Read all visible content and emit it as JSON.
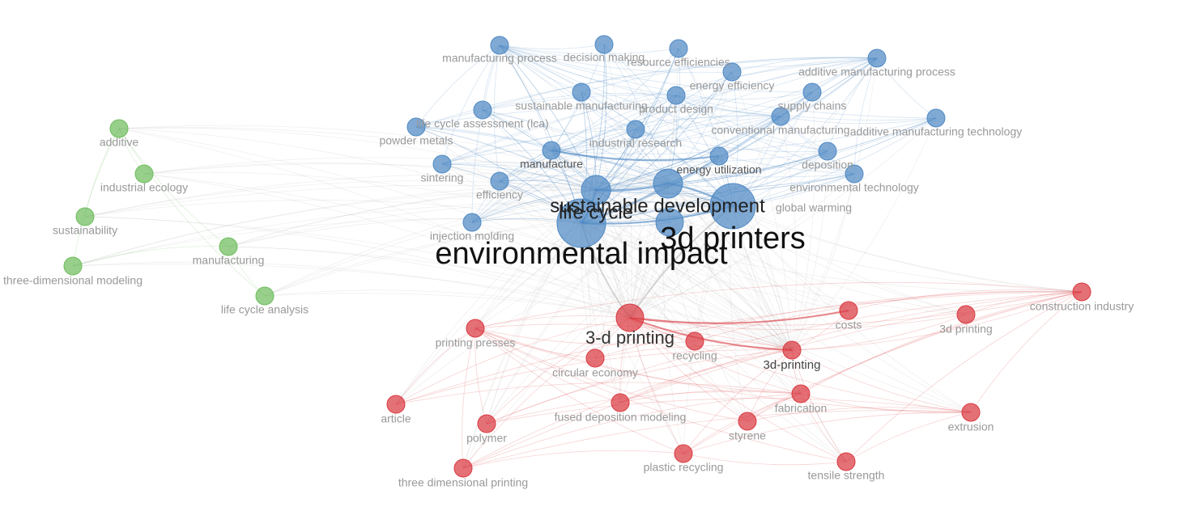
{
  "network": {
    "clusters": [
      {
        "id": 1,
        "name": "",
        "color": "#d93a41"
      },
      {
        "id": 2,
        "name": "",
        "color": "#4f89c4"
      },
      {
        "id": 3,
        "name": "",
        "color": "#6fbd5e"
      }
    ],
    "nodes": [
      {
        "id": "environmental-impact",
        "label": "environmental impact",
        "cluster": 2,
        "weight": 100
      },
      {
        "id": "3d-printers",
        "label": "3d printers",
        "cluster": 2,
        "weight": 75
      },
      {
        "id": "sustainable-development",
        "label": "sustainable development",
        "cluster": 2,
        "weight": 48
      },
      {
        "id": "life-cycle",
        "label": "life cycle",
        "cluster": 2,
        "weight": 44
      },
      {
        "id": "3-d-printing",
        "label": "3-d printing",
        "cluster": 1,
        "weight": 38
      },
      {
        "id": "global-warming",
        "label": "global warming",
        "cluster": 2,
        "weight": 12
      },
      {
        "id": "manufacture",
        "label": "manufacture",
        "cluster": 2,
        "weight": 16
      },
      {
        "id": "energy-utilization",
        "label": "energy utilization",
        "cluster": 2,
        "weight": 16
      },
      {
        "id": "3d-printing-hyphen",
        "label": "3d-printing",
        "cluster": 1,
        "weight": 18
      },
      {
        "id": "manufacturing-process",
        "label": "manufacturing process",
        "cluster": 2,
        "weight": 8
      },
      {
        "id": "decision-making",
        "label": "decision making",
        "cluster": 2,
        "weight": 8
      },
      {
        "id": "resource-efficiencies",
        "label": "resource efficiencies",
        "cluster": 2,
        "weight": 8
      },
      {
        "id": "additive-manufacturing-process",
        "label": "additive manufacturing process",
        "cluster": 2,
        "weight": 8
      },
      {
        "id": "energy-efficiency",
        "label": "energy efficiency",
        "cluster": 2,
        "weight": 8
      },
      {
        "id": "sustainable-manufacturing",
        "label": "sustainable manufacturing",
        "cluster": 2,
        "weight": 8
      },
      {
        "id": "product-design",
        "label": "product design",
        "cluster": 2,
        "weight": 8
      },
      {
        "id": "supply-chains",
        "label": "supply chains",
        "cluster": 2,
        "weight": 8
      },
      {
        "id": "life-cycle-assessment",
        "label": "life cycle assessment (lca)",
        "cluster": 2,
        "weight": 8
      },
      {
        "id": "conventional-manufacturing",
        "label": "conventional manufacturing",
        "cluster": 2,
        "weight": 8
      },
      {
        "id": "additive-manufacturing-technology",
        "label": "additive manufacturing technology",
        "cluster": 2,
        "weight": 8
      },
      {
        "id": "powder-metals",
        "label": "powder metals",
        "cluster": 2,
        "weight": 8
      },
      {
        "id": "industrial-research",
        "label": "industrial research",
        "cluster": 2,
        "weight": 8
      },
      {
        "id": "deposition",
        "label": "deposition",
        "cluster": 2,
        "weight": 8
      },
      {
        "id": "sintering",
        "label": "sintering",
        "cluster": 2,
        "weight": 8
      },
      {
        "id": "efficiency",
        "label": "efficiency",
        "cluster": 2,
        "weight": 8
      },
      {
        "id": "environmental-technology",
        "label": "environmental technology",
        "cluster": 2,
        "weight": 8
      },
      {
        "id": "injection-molding",
        "label": "injection molding",
        "cluster": 2,
        "weight": 8
      },
      {
        "id": "additive",
        "label": "additive",
        "cluster": 3,
        "weight": 8
      },
      {
        "id": "industrial-ecology",
        "label": "industrial ecology",
        "cluster": 3,
        "weight": 8
      },
      {
        "id": "sustainability",
        "label": "sustainability",
        "cluster": 3,
        "weight": 8
      },
      {
        "id": "manufacturing",
        "label": "manufacturing",
        "cluster": 3,
        "weight": 8
      },
      {
        "id": "three-dimensional-modeling",
        "label": "three-dimensional modeling",
        "cluster": 3,
        "weight": 8
      },
      {
        "id": "life-cycle-analysis",
        "label": "life cycle analysis",
        "cluster": 3,
        "weight": 8
      },
      {
        "id": "construction-industry",
        "label": "construction industry",
        "cluster": 1,
        "weight": 8
      },
      {
        "id": "costs",
        "label": "costs",
        "cluster": 1,
        "weight": 8
      },
      {
        "id": "3d-printing",
        "label": "3d printing",
        "cluster": 1,
        "weight": 8
      },
      {
        "id": "printing-presses",
        "label": "printing presses",
        "cluster": 1,
        "weight": 8
      },
      {
        "id": "recycling",
        "label": "recycling",
        "cluster": 1,
        "weight": 8
      },
      {
        "id": "circular-economy",
        "label": "circular economy",
        "cluster": 1,
        "weight": 8
      },
      {
        "id": "fabrication",
        "label": "fabrication",
        "cluster": 1,
        "weight": 8
      },
      {
        "id": "article",
        "label": "article",
        "cluster": 1,
        "weight": 8
      },
      {
        "id": "fused-deposition-modeling",
        "label": "fused deposition modeling",
        "cluster": 1,
        "weight": 8
      },
      {
        "id": "extrusion",
        "label": "extrusion",
        "cluster": 1,
        "weight": 8
      },
      {
        "id": "polymer",
        "label": "polymer",
        "cluster": 1,
        "weight": 8
      },
      {
        "id": "styrene",
        "label": "styrene",
        "cluster": 1,
        "weight": 8
      },
      {
        "id": "plastic-recycling",
        "label": "plastic recycling",
        "cluster": 1,
        "weight": 8
      },
      {
        "id": "tensile-strength",
        "label": "tensile strength",
        "cluster": 1,
        "weight": 8
      },
      {
        "id": "three-dimensional-printing",
        "label": "three dimensional printing",
        "cluster": 1,
        "weight": 8
      }
    ]
  }
}
